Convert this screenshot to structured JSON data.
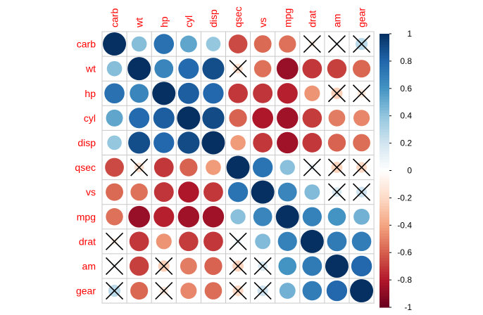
{
  "chart_data": {
    "type": "heatmap",
    "subtype": "correlation-circles",
    "variables": [
      "carb",
      "wt",
      "hp",
      "cyl",
      "disp",
      "qsec",
      "vs",
      "mpg",
      "drat",
      "am",
      "gear"
    ],
    "values": [
      [
        1.0,
        0.43,
        0.75,
        0.53,
        0.39,
        -0.66,
        -0.57,
        -0.55,
        -0.09,
        0.06,
        0.27
      ],
      [
        0.43,
        1.0,
        0.66,
        0.78,
        0.89,
        -0.17,
        -0.55,
        -0.87,
        -0.71,
        -0.69,
        -0.58
      ],
      [
        0.75,
        0.66,
        1.0,
        0.83,
        0.79,
        -0.71,
        -0.72,
        -0.78,
        -0.45,
        -0.24,
        -0.13
      ],
      [
        0.53,
        0.78,
        0.83,
        1.0,
        0.9,
        -0.59,
        -0.81,
        -0.85,
        -0.7,
        -0.52,
        -0.49
      ],
      [
        0.39,
        0.89,
        0.79,
        0.9,
        1.0,
        -0.43,
        -0.71,
        -0.85,
        -0.71,
        -0.59,
        -0.56
      ],
      [
        -0.66,
        -0.17,
        -0.71,
        -0.59,
        -0.43,
        1.0,
        0.74,
        0.42,
        0.09,
        -0.23,
        -0.21
      ],
      [
        -0.57,
        -0.55,
        -0.72,
        -0.81,
        -0.71,
        0.74,
        1.0,
        0.66,
        0.44,
        0.17,
        0.21
      ],
      [
        -0.55,
        -0.87,
        -0.78,
        -0.85,
        -0.85,
        0.42,
        0.66,
        1.0,
        0.68,
        0.6,
        0.48
      ],
      [
        -0.09,
        -0.71,
        -0.45,
        -0.7,
        -0.71,
        0.09,
        0.44,
        0.68,
        1.0,
        0.71,
        0.7
      ],
      [
        0.06,
        -0.69,
        -0.24,
        -0.52,
        -0.59,
        -0.23,
        0.17,
        0.6,
        0.71,
        1.0,
        0.79
      ],
      [
        0.27,
        -0.58,
        -0.13,
        -0.49,
        -0.56,
        -0.21,
        0.21,
        0.48,
        0.7,
        0.79,
        1.0
      ]
    ],
    "insignificant_marker": "cross",
    "insignificant": [
      [
        0,
        8
      ],
      [
        0,
        9
      ],
      [
        0,
        10
      ],
      [
        1,
        5
      ],
      [
        2,
        9
      ],
      [
        2,
        10
      ],
      [
        5,
        1
      ],
      [
        5,
        8
      ],
      [
        5,
        9
      ],
      [
        5,
        10
      ],
      [
        6,
        9
      ],
      [
        6,
        10
      ],
      [
        8,
        0
      ],
      [
        8,
        5
      ],
      [
        9,
        0
      ],
      [
        9,
        2
      ],
      [
        9,
        5
      ],
      [
        9,
        6
      ],
      [
        10,
        0
      ],
      [
        10,
        2
      ],
      [
        10,
        5
      ],
      [
        10,
        6
      ]
    ],
    "colorbar": {
      "range": [
        -1,
        1
      ],
      "ticks": [
        "1",
        "0.8",
        "0.6",
        "0.4",
        "0.2",
        "0",
        "-0.2",
        "-0.4",
        "-0.6",
        "-0.8",
        "-1"
      ],
      "colors": [
        "#67001F",
        "#B2182B",
        "#D6604D",
        "#F4A582",
        "#FDDBC7",
        "#FFFFFF",
        "#D1E5F0",
        "#92C5DE",
        "#4393C3",
        "#2166AC",
        "#053061"
      ]
    },
    "label_color": "#FF0000",
    "grid": true
  }
}
